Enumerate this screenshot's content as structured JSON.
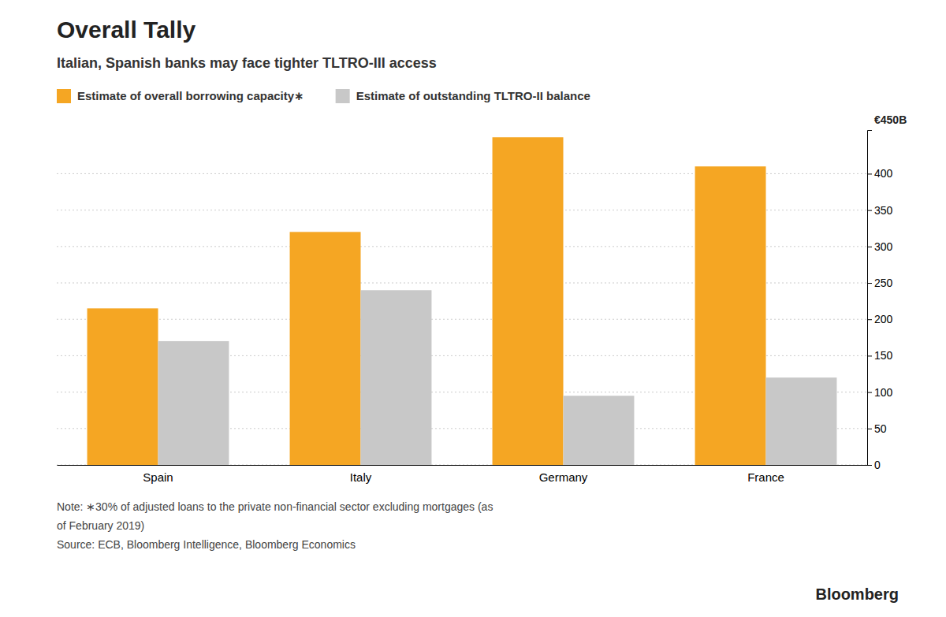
{
  "chart_data": {
    "type": "bar",
    "title": "Overall Tally",
    "subtitle": "Italian, Spanish banks may face tighter TLTRO-III access",
    "categories": [
      "Spain",
      "Italy",
      "Germany",
      "France"
    ],
    "series": [
      {
        "name": "Estimate of overall borrowing capacity∗",
        "color": "#F5A623",
        "values": [
          215,
          320,
          450,
          410
        ]
      },
      {
        "name": "Estimate of outstanding TLTRO-II balance",
        "color": "#C8C8C8",
        "values": [
          170,
          240,
          95,
          120
        ]
      }
    ],
    "ylim": [
      0,
      460
    ],
    "yticks": [
      0,
      50,
      100,
      150,
      200,
      250,
      300,
      350,
      400
    ],
    "grid": true,
    "legend": "top",
    "annotations": [
      "€450B"
    ],
    "notes": [
      "Note: ∗30% of adjusted loans to the private non-financial sector excluding mortgages (as",
      "of February 2019)"
    ],
    "source": "Source: ECB, Bloomberg Intelligence, Bloomberg Economics",
    "credit": "Bloomberg"
  }
}
